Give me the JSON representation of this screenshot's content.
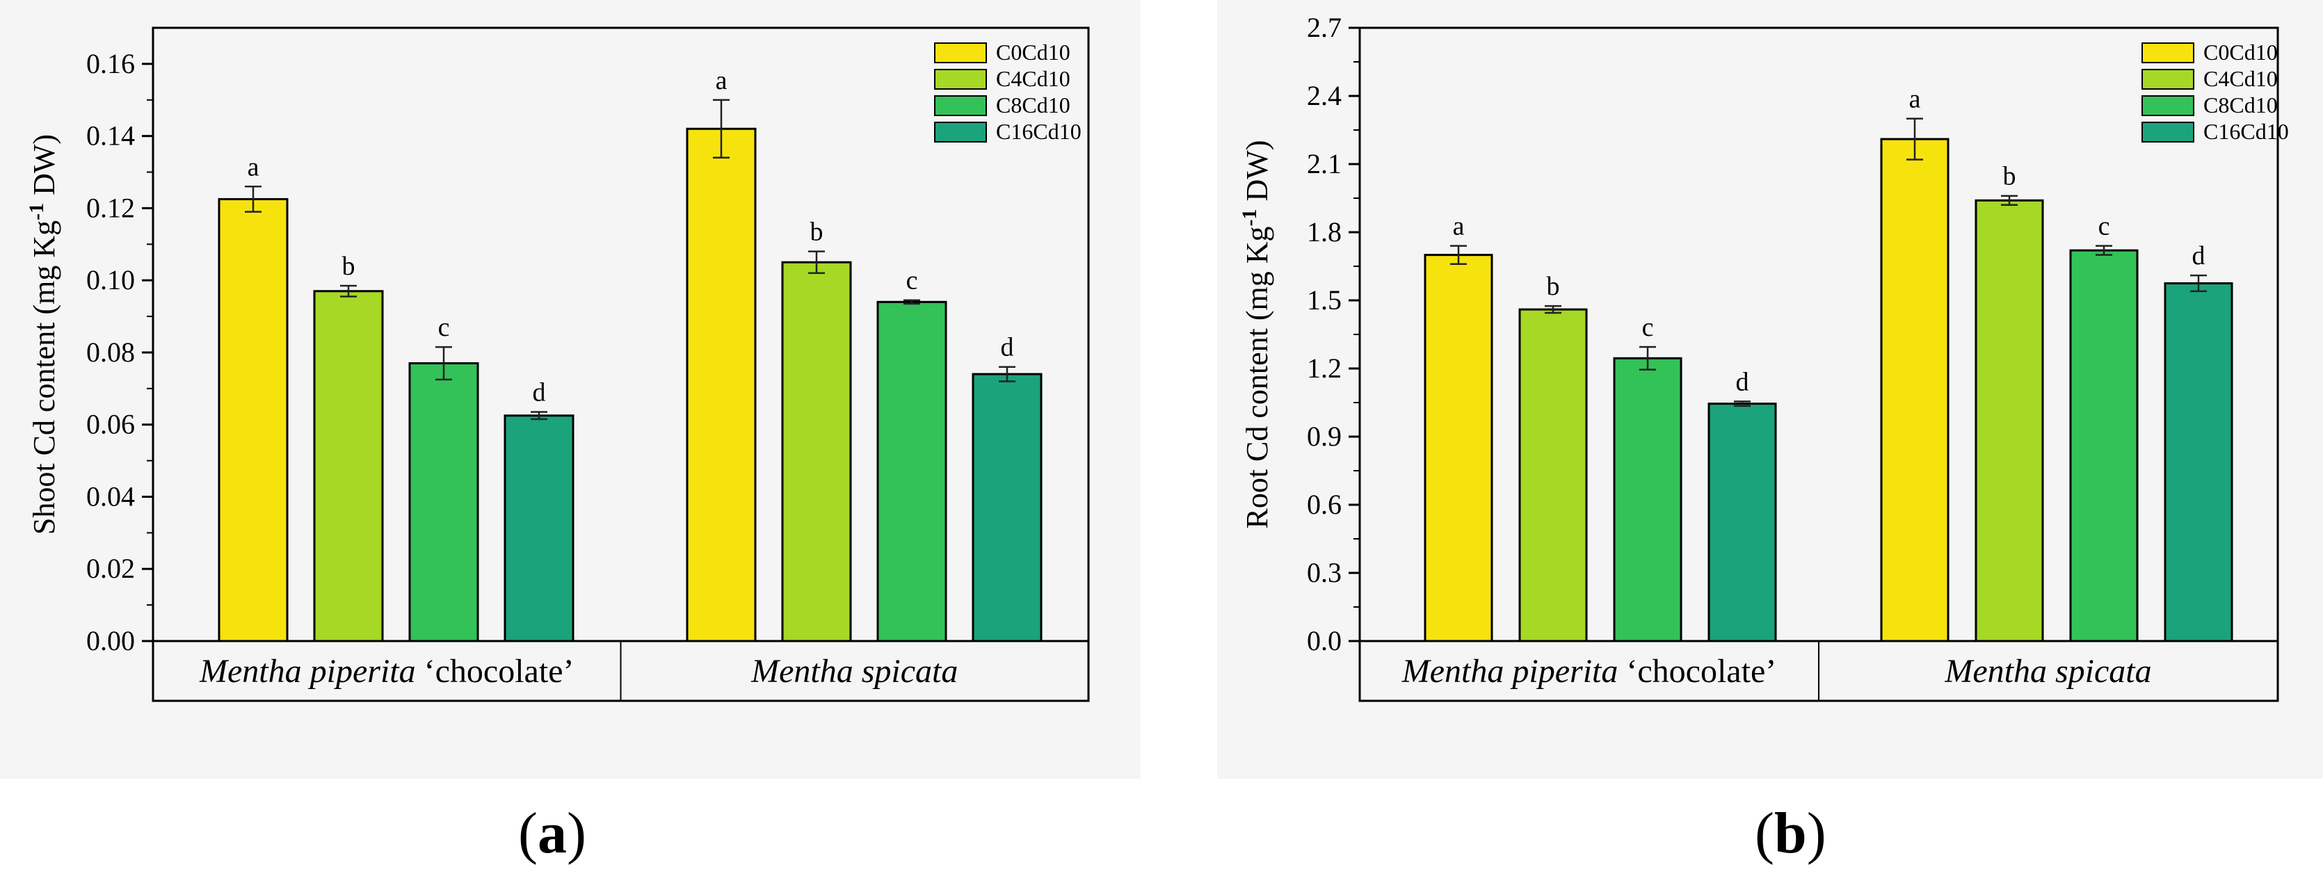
{
  "colors": {
    "C0Cd10": "#f6e30e",
    "C4Cd10": "#a6d825",
    "C8Cd10": "#33c257",
    "C16Cd10": "#1ba37c",
    "axis": "#000000",
    "panel_bg": "#f5f5f5"
  },
  "captions": {
    "a": "a",
    "b": "b"
  },
  "chart_data": [
    {
      "type": "bar",
      "ylabel_pre": "Shoot Cd content (mg Kg",
      "ylabel_sup": "-1",
      "ylabel_post": " DW)",
      "ylim": [
        0,
        0.17
      ],
      "yticks": [
        "0.00",
        "0.02",
        "0.04",
        "0.06",
        "0.08",
        "0.10",
        "0.12",
        "0.14",
        "0.16"
      ],
      "categories": [
        {
          "italic": "Mentha piperita",
          "normal": " ‘chocolate’"
        },
        {
          "italic": "Mentha spicata",
          "normal": ""
        }
      ],
      "legend": [
        "C0Cd10",
        "C4Cd10",
        "C8Cd10",
        "C16Cd10"
      ],
      "series": [
        {
          "name": "C0Cd10",
          "values": [
            0.1225,
            0.142
          ],
          "errors": [
            0.0035,
            0.008
          ],
          "letters": [
            "a",
            "a"
          ]
        },
        {
          "name": "C4Cd10",
          "values": [
            0.097,
            0.105
          ],
          "errors": [
            0.0015,
            0.003
          ],
          "letters": [
            "b",
            "b"
          ]
        },
        {
          "name": "C8Cd10",
          "values": [
            0.077,
            0.094
          ],
          "errors": [
            0.0045,
            0.0005
          ],
          "letters": [
            "c",
            "c"
          ]
        },
        {
          "name": "C16Cd10",
          "values": [
            0.0625,
            0.074
          ],
          "errors": [
            0.001,
            0.002
          ],
          "letters": [
            "d",
            "d"
          ]
        }
      ]
    },
    {
      "type": "bar",
      "ylabel_pre": "Root Cd content (mg Kg",
      "ylabel_sup": "-1",
      "ylabel_post": " DW)",
      "ylim": [
        0,
        2.7
      ],
      "yticks": [
        "0.0",
        "0.3",
        "0.6",
        "0.9",
        "1.2",
        "1.5",
        "1.8",
        "2.1",
        "2.4",
        "2.7"
      ],
      "categories": [
        {
          "italic": "Mentha piperita",
          "normal": " ‘chocolate’"
        },
        {
          "italic": "Mentha spicata",
          "normal": ""
        }
      ],
      "legend": [
        "C0Cd10",
        "C4Cd10",
        "C8Cd10",
        "C16Cd10"
      ],
      "series": [
        {
          "name": "C0Cd10",
          "values": [
            1.7,
            2.21
          ],
          "errors": [
            0.04,
            0.09
          ],
          "letters": [
            "a",
            "a"
          ]
        },
        {
          "name": "C4Cd10",
          "values": [
            1.46,
            1.94
          ],
          "errors": [
            0.015,
            0.02
          ],
          "letters": [
            "b",
            "b"
          ]
        },
        {
          "name": "C8Cd10",
          "values": [
            1.245,
            1.72
          ],
          "errors": [
            0.05,
            0.02
          ],
          "letters": [
            "c",
            "c"
          ]
        },
        {
          "name": "C16Cd10",
          "values": [
            1.045,
            1.575
          ],
          "errors": [
            0.01,
            0.035
          ],
          "letters": [
            "d",
            "d"
          ]
        }
      ]
    }
  ]
}
